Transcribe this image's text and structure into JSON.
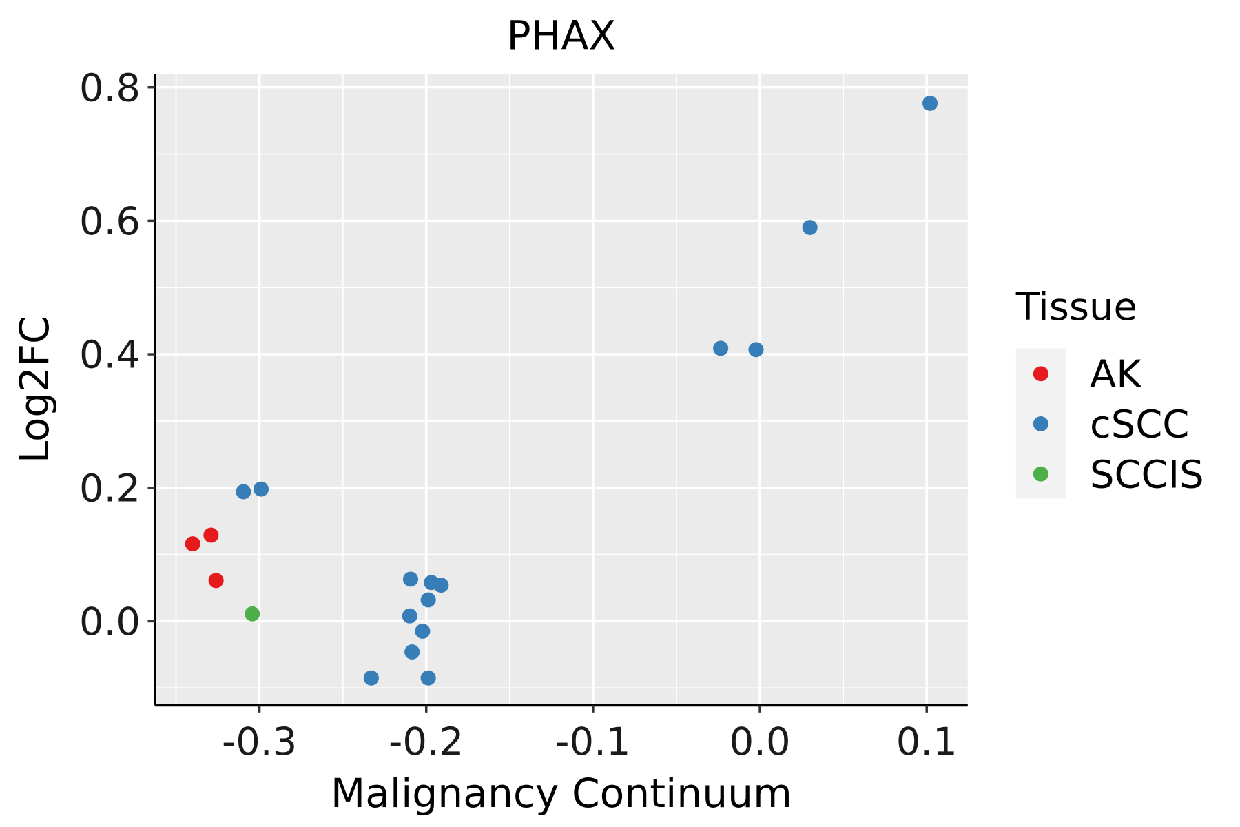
{
  "chart_data": {
    "type": "scatter",
    "title": "PHAX",
    "xlabel": "Malignancy Continuum",
    "ylabel": "Log2FC",
    "xlim": [
      -0.3626,
      0.1246
    ],
    "ylim": [
      -0.126,
      0.82
    ],
    "x_ticks": [
      -0.3,
      -0.2,
      -0.1,
      0.0,
      0.1
    ],
    "x_tick_labels": [
      "-0.3",
      "-0.2",
      "-0.1",
      "0.0",
      "0.1"
    ],
    "y_ticks": [
      0.0,
      0.2,
      0.4,
      0.6,
      0.8
    ],
    "y_tick_labels": [
      "0.0",
      "0.2",
      "0.4",
      "0.6",
      "0.8"
    ],
    "grid": true,
    "legend": {
      "title": "Tissue",
      "placement": "right"
    },
    "series": [
      {
        "name": "AK",
        "color": "#e41a1c",
        "points": [
          [
            -0.34,
            0.116
          ],
          [
            -0.329,
            0.129
          ],
          [
            -0.326,
            0.061
          ]
        ]
      },
      {
        "name": "cSCC",
        "color": "#377eb8",
        "points": [
          [
            0.102,
            0.776
          ],
          [
            0.03,
            0.59
          ],
          [
            -0.0235,
            0.409
          ],
          [
            -0.0023,
            0.407
          ],
          [
            -0.3096,
            0.194
          ],
          [
            -0.299,
            0.198
          ],
          [
            -0.2094,
            0.063
          ],
          [
            -0.1969,
            0.058
          ],
          [
            -0.1911,
            0.054
          ],
          [
            -0.1988,
            0.032
          ],
          [
            -0.2099,
            0.008
          ],
          [
            -0.2022,
            -0.015
          ],
          [
            -0.2085,
            -0.046
          ],
          [
            -0.233,
            -0.085
          ],
          [
            -0.1988,
            -0.085
          ]
        ]
      },
      {
        "name": "SCCIS",
        "color": "#4daf4a",
        "points": [
          [
            -0.3043,
            0.011
          ]
        ]
      }
    ]
  }
}
